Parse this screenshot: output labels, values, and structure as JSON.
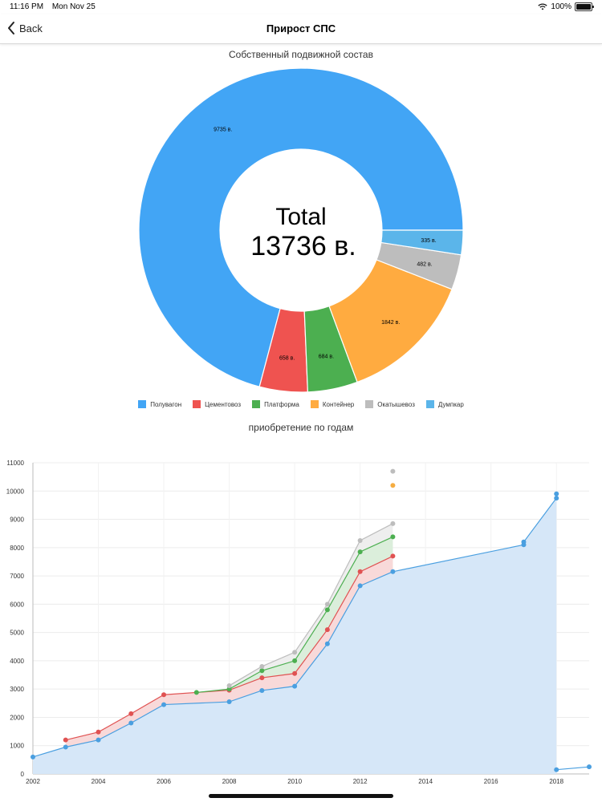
{
  "status_bar": {
    "time": "11:16 PM",
    "date": "Mon Nov 25",
    "battery": "100%"
  },
  "nav": {
    "back_label": "Back",
    "title": "Прирост СПС"
  },
  "colors": {
    "accent": "#007aff"
  },
  "chart_data": [
    {
      "type": "pie",
      "title": "Собственный подвижной состав",
      "center_text": [
        "Total",
        "13736 в."
      ],
      "slices": [
        {
          "label": "Полувагон",
          "value": 9735,
          "display": "9735 в.",
          "color": "#42a5f5"
        },
        {
          "label": "Цементовоз",
          "value": 658,
          "display": "658 в.",
          "color": "#ef5350"
        },
        {
          "label": "Платформа",
          "value": 684,
          "display": "684 в.",
          "color": "#4caf50"
        },
        {
          "label": "Контейнер",
          "value": 1842,
          "display": "1842 в.",
          "color": "#ffab40"
        },
        {
          "label": "Окатышевоз",
          "value": 482,
          "display": "482 в.",
          "color": "#bdbdbd"
        },
        {
          "label": "Думпкар",
          "value": 335,
          "display": "335 в.",
          "color": "#5bb5ea"
        }
      ],
      "legend_position": "bottom"
    },
    {
      "type": "area",
      "title": "приобретение по годам",
      "ylim": [
        0,
        11000
      ],
      "yticks": [
        0,
        1000,
        2000,
        3000,
        4000,
        5000,
        6000,
        7000,
        8000,
        9000,
        10000,
        11000
      ],
      "xlim": [
        2002,
        2019
      ],
      "xticks": [
        2002,
        2004,
        2006,
        2008,
        2010,
        2012,
        2014,
        2016,
        2018
      ],
      "grid": true,
      "series": [
        {
          "color": "#4a9fe0",
          "fill": "#d6e7f8",
          "show_dots": true,
          "points": [
            [
              2002,
              600
            ],
            [
              2003,
              950
            ],
            [
              2004,
              1200
            ],
            [
              2005,
              1800
            ],
            [
              2006,
              2450
            ],
            [
              2008,
              2550
            ],
            [
              2009,
              2950
            ],
            [
              2010,
              3100
            ],
            [
              2011,
              4600
            ],
            [
              2012,
              6650
            ],
            [
              2013,
              7150
            ],
            [
              2017,
              8100
            ],
            [
              2017,
              8200
            ],
            [
              2018,
              9750
            ],
            [
              2018,
              9900
            ]
          ]
        },
        {
          "color": "#4a9fe0",
          "fill": "none",
          "show_dots": true,
          "points": [
            [
              2018,
              150
            ],
            [
              2019,
              250
            ]
          ]
        },
        {
          "color": "#e05252",
          "fill": "#f8d9d9",
          "show_dots": true,
          "points": [
            [
              2003,
              1200
            ],
            [
              2004,
              1480
            ],
            [
              2005,
              2130
            ],
            [
              2006,
              2800
            ],
            [
              2008,
              2960
            ],
            [
              2009,
              3400
            ],
            [
              2010,
              3550
            ],
            [
              2011,
              5100
            ],
            [
              2012,
              7150
            ],
            [
              2013,
              7700
            ]
          ]
        },
        {
          "color": "#4caf50",
          "fill": "#dbeedb",
          "show_dots": true,
          "points": [
            [
              2007,
              2880
            ],
            [
              2008,
              3000
            ],
            [
              2009,
              3650
            ],
            [
              2010,
              4000
            ],
            [
              2011,
              5800
            ],
            [
              2012,
              7850
            ],
            [
              2013,
              8380
            ]
          ]
        },
        {
          "color": "#bdbdbd",
          "fill": "#eeeeee",
          "show_dots": true,
          "points": [
            [
              2008,
              3120
            ],
            [
              2009,
              3800
            ],
            [
              2010,
              4300
            ],
            [
              2011,
              6000
            ],
            [
              2012,
              8250
            ],
            [
              2013,
              8850
            ]
          ]
        },
        {
          "color": "#f5ad42",
          "fill": "none",
          "show_dots": true,
          "points": [
            [
              2013,
              10200
            ]
          ]
        },
        {
          "color": "#bdbdbd",
          "fill": "none",
          "show_dots": true,
          "points": [
            [
              2013,
              10700
            ]
          ]
        }
      ]
    }
  ]
}
